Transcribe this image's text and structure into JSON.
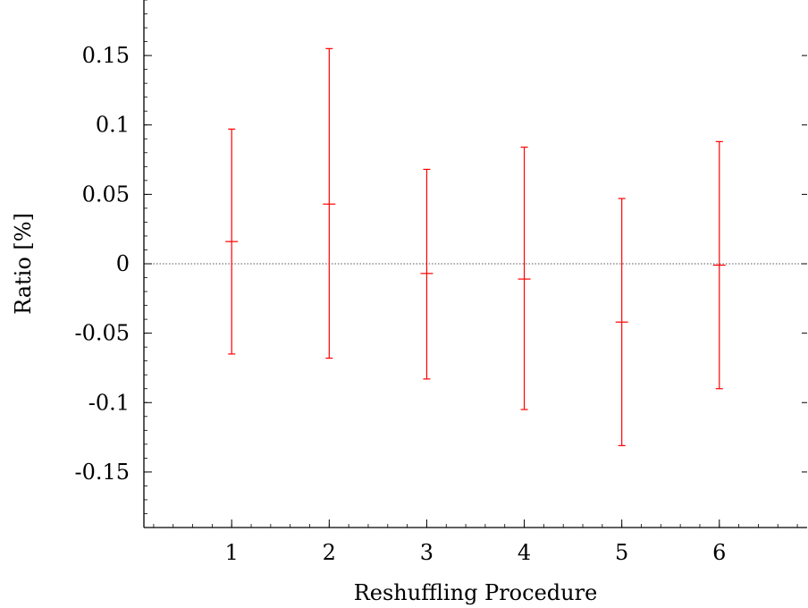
{
  "chart_data": {
    "type": "scatter",
    "subtype": "errorbar",
    "xlabel": "Reshuffling Procedure",
    "ylabel": "Ratio [%]",
    "xlim": [
      0.1,
      6.9
    ],
    "ylim": [
      -0.19,
      0.19
    ],
    "x_ticks": [
      1,
      2,
      3,
      4,
      5,
      6
    ],
    "x_tick_labels": [
      "1",
      "2",
      "3",
      "4",
      "5",
      "6"
    ],
    "y_ticks": [
      0.15,
      0.1,
      0.05,
      0,
      -0.05,
      -0.1,
      -0.15
    ],
    "y_tick_labels": [
      "0.15",
      "0.1",
      "0.05",
      "0",
      "-0.05",
      "-0.1",
      "-0.15"
    ],
    "reference_line": {
      "y": 0,
      "style": "dotted",
      "color": "#555555"
    },
    "grid": false,
    "color": "#ff0000",
    "points": [
      {
        "x": 1,
        "y": 0.016,
        "y_low": -0.065,
        "y_high": 0.097
      },
      {
        "x": 2,
        "y": 0.043,
        "y_low": -0.068,
        "y_high": 0.155
      },
      {
        "x": 3,
        "y": -0.007,
        "y_low": -0.083,
        "y_high": 0.068
      },
      {
        "x": 4,
        "y": -0.011,
        "y_low": -0.105,
        "y_high": 0.084
      },
      {
        "x": 5,
        "y": -0.042,
        "y_low": -0.131,
        "y_high": 0.047
      },
      {
        "x": 6,
        "y": -0.001,
        "y_low": -0.09,
        "y_high": 0.088
      }
    ]
  }
}
